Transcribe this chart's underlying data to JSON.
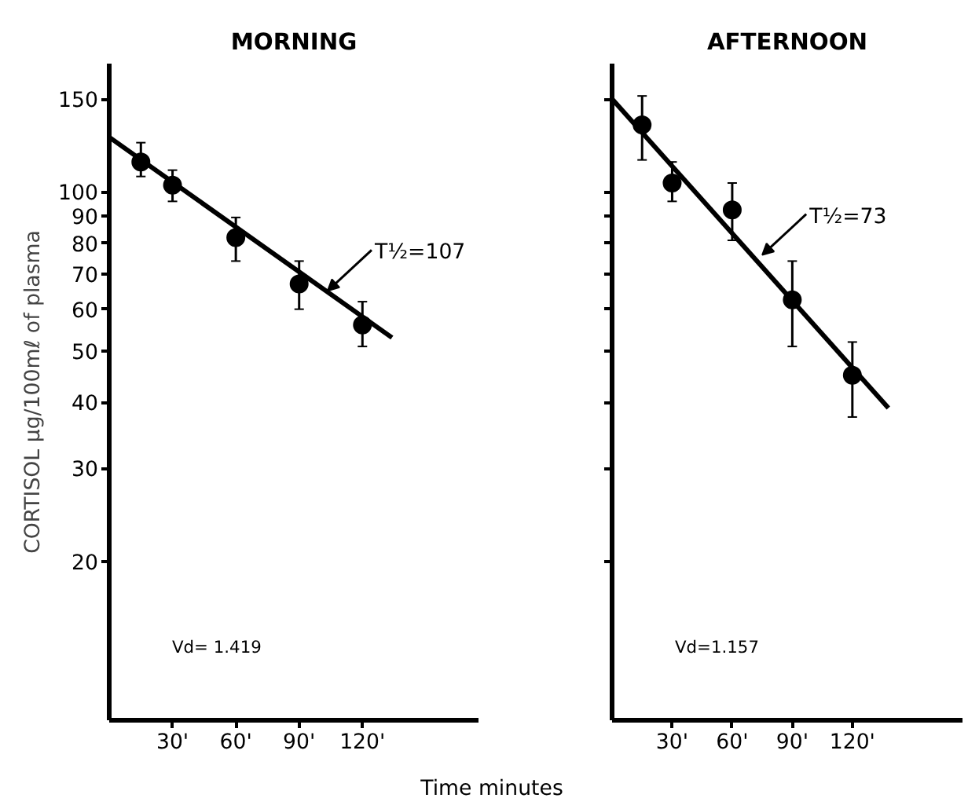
{
  "chart_data": [
    {
      "type": "scatter",
      "title": "MORNING",
      "xlabel": "Time minutes",
      "ylabel": "CORTISOL μg/100mℓ of plasma",
      "log": "y",
      "xlim": [
        0,
        175
      ],
      "ylim": [
        10,
        175
      ],
      "xticks": [
        {
          "value": 30,
          "label": "30'"
        },
        {
          "value": 60,
          "label": "60'"
        },
        {
          "value": 90,
          "label": "90'"
        },
        {
          "value": 120,
          "label": "120'"
        }
      ],
      "yticks": [
        150,
        100,
        90,
        80,
        70,
        60,
        50,
        40,
        30,
        20
      ],
      "grid": false,
      "annotations": [
        {
          "text": "T½=107",
          "x": 103.5,
          "y": 65
        },
        "Vd= 1.419"
      ],
      "series": [
        {
          "marker": "circle",
          "color": "#000000",
          "x": [
            15,
            30,
            60,
            90,
            120
          ],
          "values": [
            114,
            103,
            82,
            67,
            56
          ],
          "errors": [
            [
              107,
              124
            ],
            [
              96,
              110
            ],
            [
              74,
              89.5
            ],
            [
              60,
              74
            ],
            [
              51,
              62
            ]
          ]
        },
        {
          "type": "line",
          "marker": "none",
          "color": "#000000",
          "x": [
            0,
            134
          ],
          "values": [
            127,
            53
          ]
        }
      ]
    },
    {
      "type": "scatter",
      "title": "AFTERNOON",
      "log": "y",
      "xlim": [
        0,
        175
      ],
      "ylim": [
        10,
        175
      ],
      "tick_labels": "x",
      "xticks": [
        {
          "value": 30,
          "label": "30'"
        },
        {
          "value": 60,
          "label": "60'"
        },
        {
          "value": 90,
          "label": "90'"
        },
        {
          "value": 120,
          "label": "120'"
        }
      ],
      "yticks": [
        150,
        100,
        90,
        80,
        70,
        60,
        50,
        40,
        30,
        20
      ],
      "grid": false,
      "annotations": [
        {
          "text": "T½=73",
          "x": 75,
          "y": 76
        },
        "Vd=1.157"
      ],
      "series": [
        {
          "marker": "circle",
          "color": "#000000",
          "x": [
            15,
            30,
            60,
            90,
            120
          ],
          "values": [
            134,
            104,
            92.5,
            62.5,
            45
          ],
          "errors": [
            [
              115,
              152
            ],
            [
              96,
              114
            ],
            [
              81,
              104
            ],
            [
              51,
              74
            ],
            [
              37.5,
              52
            ]
          ]
        },
        {
          "type": "line",
          "marker": "none",
          "color": "#000000",
          "x": [
            0,
            138
          ],
          "values": [
            150,
            39
          ]
        }
      ]
    }
  ]
}
